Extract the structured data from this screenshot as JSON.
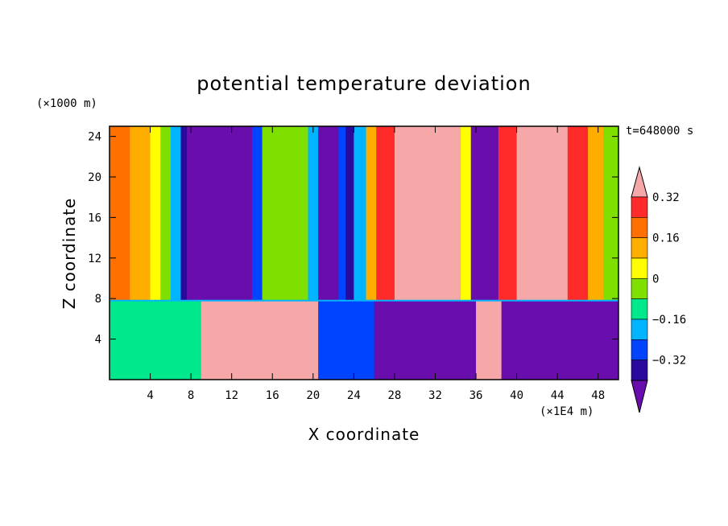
{
  "chart_data": {
    "type": "heatmap",
    "title": "potential temperature deviation",
    "xlabel": "X coordinate",
    "ylabel": "Z coordinate",
    "x_units": "(×1E4 m)",
    "y_units": "(×1000 m)",
    "time_label": "t=648000 s",
    "x_range": [
      0,
      50
    ],
    "y_range": [
      0,
      25
    ],
    "x_ticks": [
      4,
      8,
      12,
      16,
      20,
      24,
      28,
      32,
      36,
      40,
      44,
      48
    ],
    "y_ticks": [
      4,
      8,
      12,
      16,
      20,
      24
    ],
    "colorbar": {
      "levels": [
        -0.4,
        -0.32,
        -0.24,
        -0.16,
        -0.08,
        0,
        0.08,
        0.16,
        0.24,
        0.32,
        0.4
      ],
      "labels": [
        "0.32",
        "0.16",
        "0",
        "-0.16",
        "-0.32"
      ],
      "label_values": [
        0.32,
        0.16,
        0,
        -0.16,
        -0.32
      ],
      "colors": [
        "#6a0dad",
        "#2a0a9c",
        "#0044ff",
        "#00b4ff",
        "#00e88c",
        "#7fe000",
        "#ffff00",
        "#ffae00",
        "#ff7000",
        "#ff2a2a",
        "#f6a8a8"
      ]
    },
    "upper_layer_columns": [
      {
        "x": [
          0,
          2
        ],
        "value": 0.3
      },
      {
        "x": [
          2,
          4
        ],
        "value": 0.18
      },
      {
        "x": [
          4,
          5
        ],
        "value": 0.08
      },
      {
        "x": [
          5,
          6
        ],
        "value": 0.0
      },
      {
        "x": [
          6,
          7
        ],
        "value": -0.1
      },
      {
        "x": [
          7,
          7.6
        ],
        "value": -0.25
      },
      {
        "x": [
          7.6,
          14
        ],
        "value": -0.4
      },
      {
        "x": [
          14,
          15
        ],
        "value": -0.2
      },
      {
        "x": [
          15,
          16.5
        ],
        "value": 0.0
      },
      {
        "x": [
          16.5,
          19.5
        ],
        "value": 0.05
      },
      {
        "x": [
          19.5,
          20.5
        ],
        "value": -0.1
      },
      {
        "x": [
          20.5,
          22.5
        ],
        "value": -0.4
      },
      {
        "x": [
          22.5,
          23.2
        ],
        "value": -0.2
      },
      {
        "x": [
          23.2,
          24
        ],
        "value": -0.32
      },
      {
        "x": [
          24,
          25.2
        ],
        "value": -0.1
      },
      {
        "x": [
          25.2,
          26.2
        ],
        "value": 0.16
      },
      {
        "x": [
          26.2,
          28
        ],
        "value": 0.32
      },
      {
        "x": [
          28,
          34.5
        ],
        "value": 0.4
      },
      {
        "x": [
          34.5,
          35.5
        ],
        "value": 0.1
      },
      {
        "x": [
          35.5,
          38.2
        ],
        "value": -0.4
      },
      {
        "x": [
          38.2,
          40
        ],
        "value": 0.32
      },
      {
        "x": [
          40,
          45
        ],
        "value": 0.4
      },
      {
        "x": [
          45,
          47
        ],
        "value": 0.32
      },
      {
        "x": [
          47,
          48.5
        ],
        "value": 0.16
      },
      {
        "x": [
          48.5,
          50
        ],
        "value": 0.05
      }
    ],
    "lower_layer_regions": [
      {
        "x": [
          0,
          9
        ],
        "value": -0.05
      },
      {
        "x": [
          9,
          20.5
        ],
        "value": 0.4
      },
      {
        "x": [
          20.5,
          26
        ],
        "value": -0.2
      },
      {
        "x": [
          26,
          36
        ],
        "value": -0.4
      },
      {
        "x": [
          36,
          38.5
        ],
        "value": 0.4
      },
      {
        "x": [
          38.5,
          50
        ],
        "value": -0.4
      }
    ],
    "interface_z": 7.8
  }
}
